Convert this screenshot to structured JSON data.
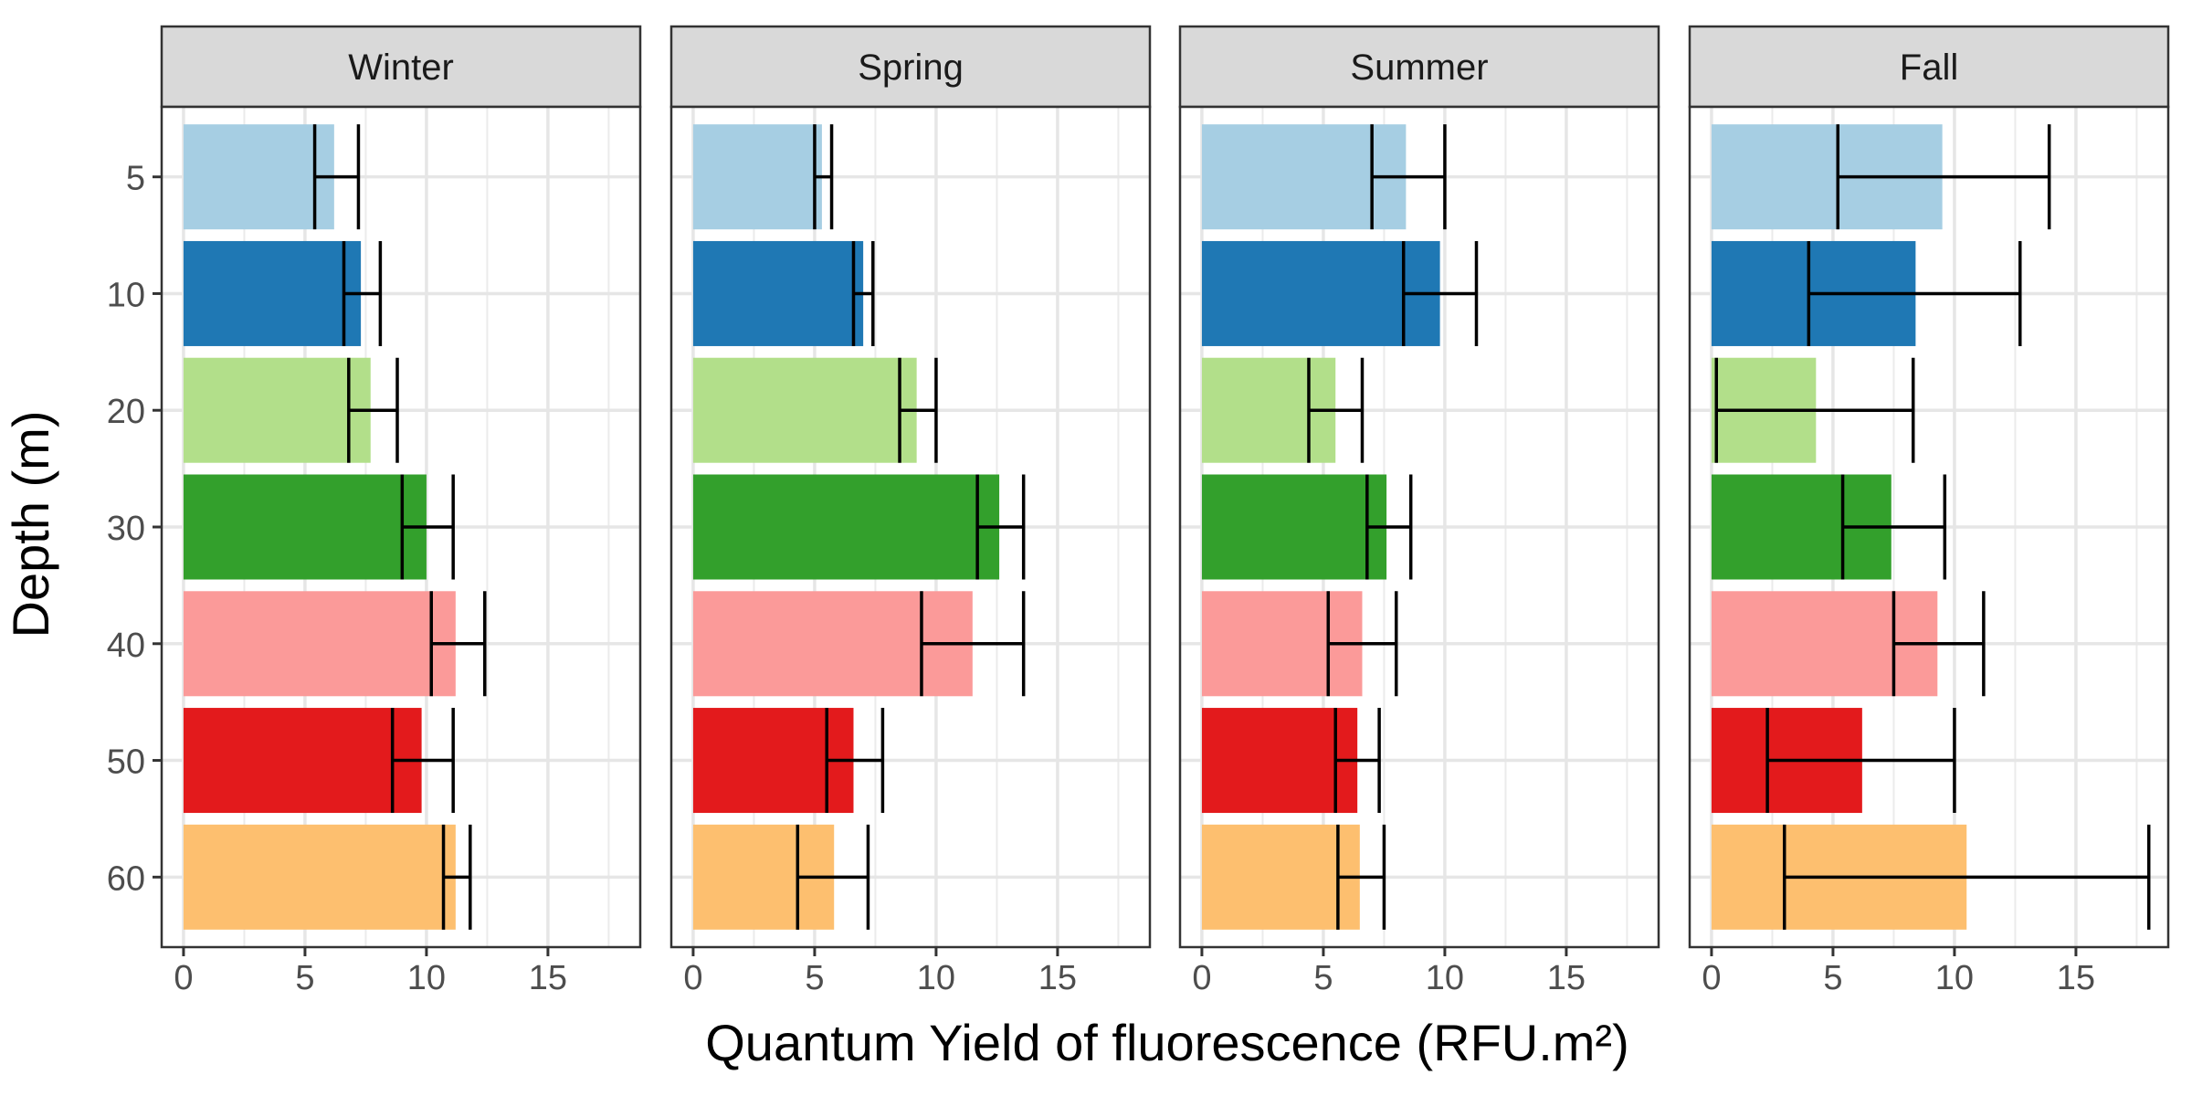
{
  "chart_data": {
    "type": "bar",
    "orientation": "horizontal",
    "facets": [
      "Winter",
      "Spring",
      "Summer",
      "Fall"
    ],
    "categories": [
      "5",
      "10",
      "20",
      "30",
      "40",
      "50",
      "60"
    ],
    "xlabel": "Quantum Yield of fluorescence (RFU.m²)",
    "ylabel": "Depth (m)",
    "xlim": [
      -0.9,
      18.8
    ],
    "xticks": [
      0,
      5,
      10,
      15
    ],
    "colors": [
      "#A6CEE3",
      "#1F78B4",
      "#B2DF8A",
      "#33A02C",
      "#FB9A99",
      "#E31A1C",
      "#FDBF6F"
    ],
    "grid": true,
    "panels": [
      {
        "name": "Winter",
        "values": [
          6.2,
          7.3,
          7.7,
          10.0,
          11.2,
          9.8,
          11.2
        ],
        "err_low": [
          5.4,
          6.6,
          6.8,
          9.0,
          10.2,
          8.6,
          10.7
        ],
        "err_high": [
          7.2,
          8.1,
          8.8,
          11.1,
          12.4,
          11.1,
          11.8
        ]
      },
      {
        "name": "Spring",
        "values": [
          5.3,
          7.0,
          9.2,
          12.6,
          11.5,
          6.6,
          5.8
        ],
        "err_low": [
          5.0,
          6.6,
          8.5,
          11.7,
          9.4,
          5.5,
          4.3
        ],
        "err_high": [
          5.7,
          7.4,
          10.0,
          13.6,
          13.6,
          7.8,
          7.2
        ]
      },
      {
        "name": "Summer",
        "values": [
          8.4,
          9.8,
          5.5,
          7.6,
          6.6,
          6.4,
          6.5
        ],
        "err_low": [
          7.0,
          8.3,
          4.4,
          6.8,
          5.2,
          5.5,
          5.6
        ],
        "err_high": [
          10.0,
          11.3,
          6.6,
          8.6,
          8.0,
          7.3,
          7.5
        ]
      },
      {
        "name": "Fall",
        "values": [
          9.5,
          8.4,
          4.3,
          7.4,
          9.3,
          6.2,
          10.5
        ],
        "err_low": [
          5.2,
          4.0,
          0.2,
          5.4,
          7.5,
          2.3,
          3.0
        ],
        "err_high": [
          13.9,
          12.7,
          8.3,
          9.6,
          11.2,
          10.0,
          18.0
        ]
      }
    ]
  }
}
